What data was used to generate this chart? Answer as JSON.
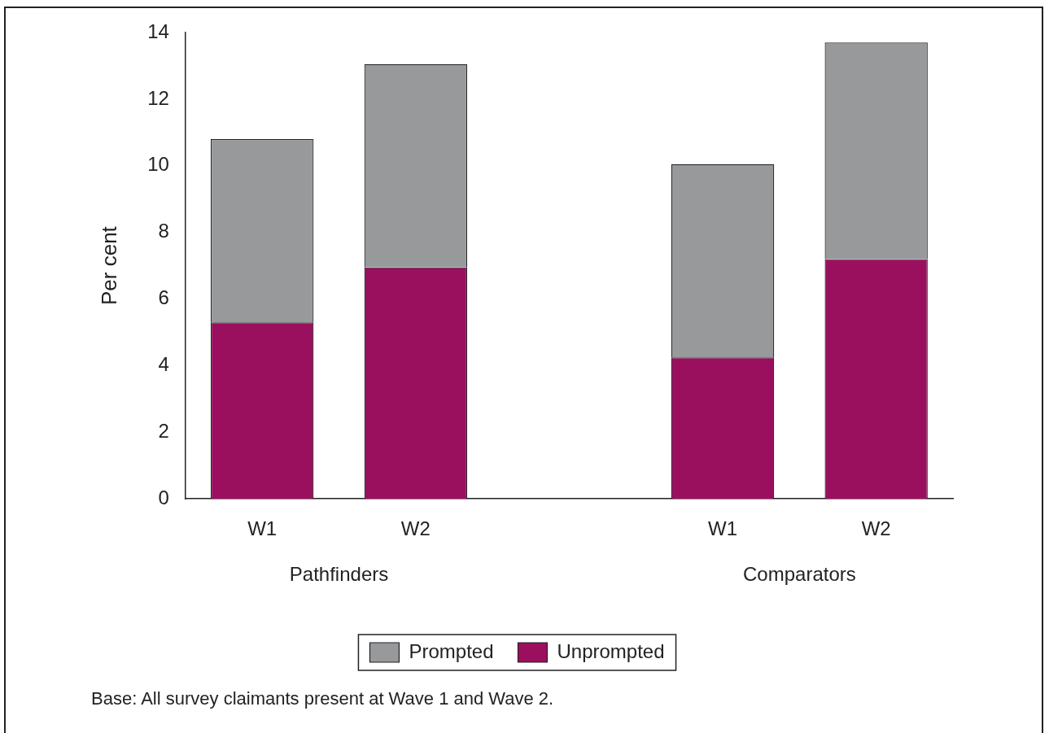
{
  "chart_data": {
    "type": "bar",
    "stacked": true,
    "ylabel": "Per cent",
    "categories": [
      "W1",
      "W2",
      null,
      "W1",
      "W2"
    ],
    "series": [
      {
        "name": "Unprompted",
        "color": "#9b0f5f",
        "values": [
          5.3,
          6.95,
          null,
          4.25,
          7.2
        ]
      },
      {
        "name": "Prompted",
        "color": "#97999b",
        "values": [
          5.5,
          6.1,
          null,
          5.8,
          6.5
        ]
      }
    ],
    "ylim": [
      0,
      14
    ],
    "yticks": [
      0,
      2,
      4,
      6,
      8,
      10,
      12,
      14
    ],
    "grid": false,
    "legend": "bottom",
    "annotations": [
      "Pathfinders",
      "Comparators",
      "Base: All survey claimants present at Wave 1 and Wave 2."
    ]
  }
}
